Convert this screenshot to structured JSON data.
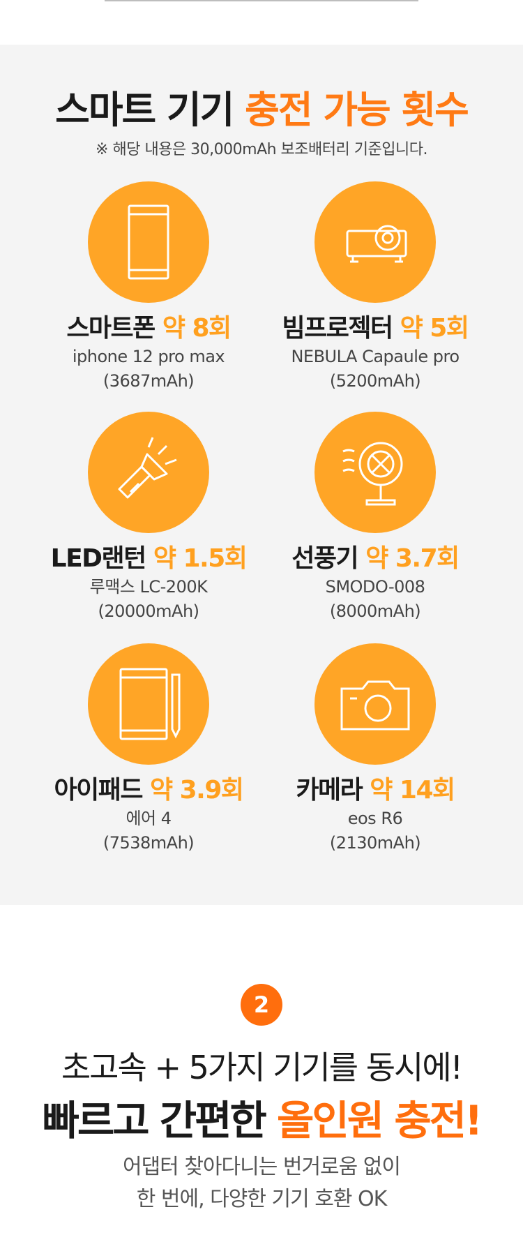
{
  "header": {
    "title_main": "스마트 기기 ",
    "title_accent": "충전 가능 횟수",
    "note": "※ 해당 내용은 30,000mAh 보조배터리 기준입니다."
  },
  "devices": [
    {
      "name": "스마트폰",
      "count": "약 8회",
      "model": "iphone 12 pro max",
      "capacity": "(3687mAh)",
      "icon": "smartphone-icon"
    },
    {
      "name": "빔프로젝터",
      "count": "약 5회",
      "model": "NEBULA Capaule pro",
      "capacity": "(5200mAh)",
      "icon": "projector-icon"
    },
    {
      "name": "LED랜턴",
      "count": "약 1.5회",
      "model": "루맥스 LC-200K",
      "capacity": "(20000mAh)",
      "icon": "flashlight-icon"
    },
    {
      "name": "선풍기",
      "count": "약 3.7회",
      "model": "SMODO-008",
      "capacity": "(8000mAh)",
      "icon": "fan-icon"
    },
    {
      "name": "아이패드",
      "count": "약 3.9회",
      "model": "에어 4",
      "capacity": "(7538mAh)",
      "icon": "tablet-icon"
    },
    {
      "name": "카메라",
      "count": "약 14회",
      "model": "eos R6",
      "capacity": "(2130mAh)",
      "icon": "camera-icon"
    }
  ],
  "section2": {
    "badge": "2",
    "headline1": "초고속 + 5가지 기기를 동시에!",
    "headline2_main": "빠르고 간편한 ",
    "headline2_accent": "올인원 충전!",
    "desc_line1": "어댑터 찾아다니는 번거로움 없이",
    "desc_line2": "한 번에, 다양한 기기 호환 OK"
  },
  "colors": {
    "accent": "#ff7a14",
    "circle": "#ffa526",
    "badge": "#ff6e0d",
    "panel": "#f4f4f4"
  }
}
